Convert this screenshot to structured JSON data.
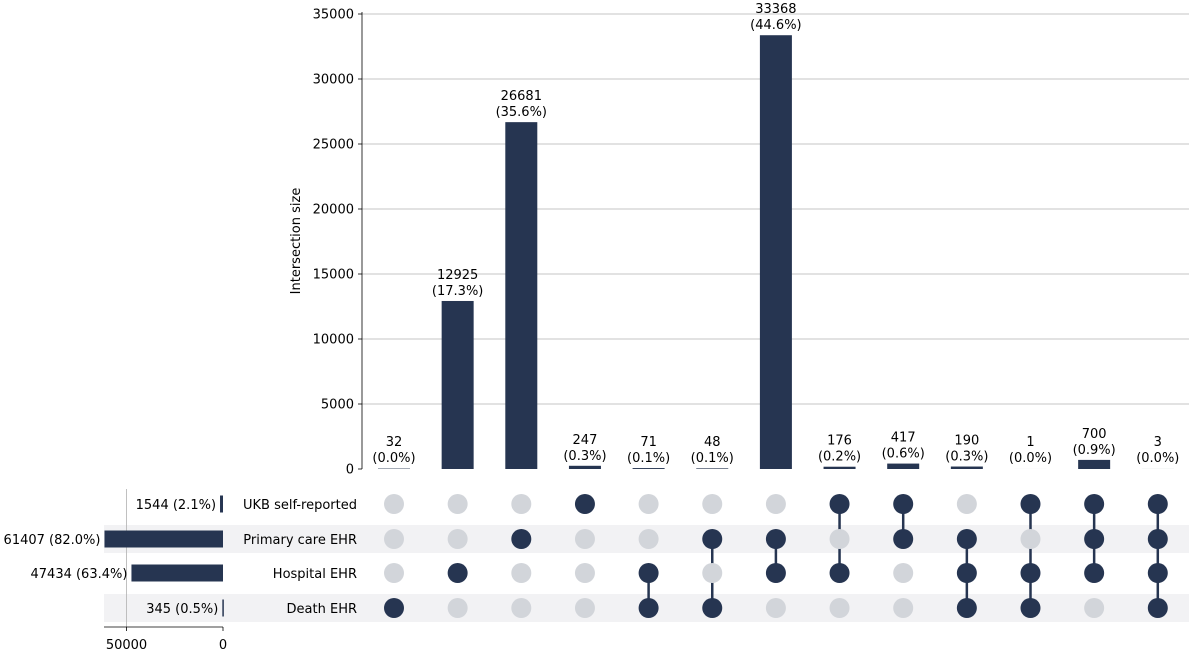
{
  "chart_data": {
    "type": "upset",
    "ylabel": "Intersection size",
    "ylim": [
      0,
      35000
    ],
    "yticks": [
      0,
      5000,
      10000,
      15000,
      20000,
      25000,
      30000,
      35000
    ],
    "set_size_ticks": [
      50000,
      0
    ],
    "colors": {
      "bar": "#263551",
      "dot_inactive": "#d2d5da",
      "band": "#f2f2f4",
      "grid": "#b0b0b0"
    },
    "sets": [
      {
        "name": "UKB self-reported",
        "size": 1544,
        "label": "1544 (2.1%)"
      },
      {
        "name": "Primary care EHR",
        "size": 61407,
        "label": "61407 (82.0%)"
      },
      {
        "name": "Hospital EHR",
        "size": 47434,
        "label": "47434 (63.4%)"
      },
      {
        "name": "Death EHR",
        "size": 345,
        "label": "345 (0.5%)"
      }
    ],
    "intersections": [
      {
        "value": 32,
        "count_label": "32",
        "pct_label": "(0.0%)",
        "members": [
          3
        ]
      },
      {
        "value": 12925,
        "count_label": "12925",
        "pct_label": "(17.3%)",
        "members": [
          2
        ]
      },
      {
        "value": 26681,
        "count_label": "26681",
        "pct_label": "(35.6%)",
        "members": [
          1
        ]
      },
      {
        "value": 247,
        "count_label": "247",
        "pct_label": "(0.3%)",
        "members": [
          0
        ]
      },
      {
        "value": 71,
        "count_label": "71",
        "pct_label": "(0.1%)",
        "members": [
          2,
          3
        ]
      },
      {
        "value": 48,
        "count_label": "48",
        "pct_label": "(0.1%)",
        "members": [
          1,
          3
        ]
      },
      {
        "value": 33368,
        "count_label": "33368",
        "pct_label": "(44.6%)",
        "members": [
          1,
          2
        ]
      },
      {
        "value": 176,
        "count_label": "176",
        "pct_label": "(0.2%)",
        "members": [
          0,
          2
        ]
      },
      {
        "value": 417,
        "count_label": "417",
        "pct_label": "(0.6%)",
        "members": [
          0,
          1
        ]
      },
      {
        "value": 190,
        "count_label": "190",
        "pct_label": "(0.3%)",
        "members": [
          1,
          2,
          3
        ]
      },
      {
        "value": 1,
        "count_label": "1",
        "pct_label": "(0.0%)",
        "members": [
          0,
          2,
          3
        ]
      },
      {
        "value": 700,
        "count_label": "700",
        "pct_label": "(0.9%)",
        "members": [
          0,
          1,
          2
        ]
      },
      {
        "value": 3,
        "count_label": "3",
        "pct_label": "(0.0%)",
        "members": [
          0,
          1,
          2,
          3
        ]
      }
    ]
  }
}
